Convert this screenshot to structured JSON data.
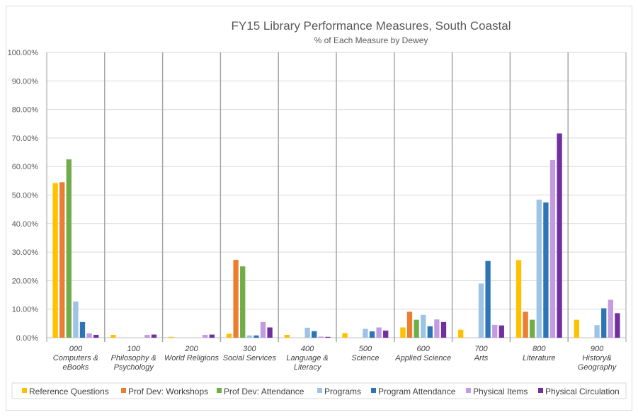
{
  "chart_data": {
    "type": "bar",
    "title": "FY15 Library Performance Measures, South Coastal",
    "subtitle": "% of Each Measure by Dewey",
    "xlabel": "",
    "ylabel": "",
    "ylim": [
      0,
      100
    ],
    "y_ticks": [
      "0.00%",
      "10.00%",
      "20.00%",
      "30.00%",
      "40.00%",
      "50.00%",
      "60.00%",
      "70.00%",
      "80.00%",
      "90.00%",
      "100.00%"
    ],
    "grid": true,
    "legend_position": "bottom",
    "categories": [
      [
        "000",
        "Computers &",
        "eBooks"
      ],
      [
        "100",
        "Philosophy &",
        "Psychology"
      ],
      [
        "200",
        "World Religions"
      ],
      [
        "300",
        "Social Services"
      ],
      [
        "400",
        "Language &",
        "Literacy"
      ],
      [
        "500",
        "Science"
      ],
      [
        "600",
        "Applied Science"
      ],
      [
        "700",
        "Arts"
      ],
      [
        "800",
        "Literature"
      ],
      [
        "900",
        "History&",
        "Geography"
      ]
    ],
    "series": [
      {
        "name": "Reference Questions",
        "color": "#ffc000",
        "values": [
          54.2,
          1.0,
          0.3,
          1.4,
          1.0,
          1.6,
          3.6,
          2.8,
          27.2,
          6.3
        ]
      },
      {
        "name": "Prof Dev: Workshops",
        "color": "#ed7d31",
        "values": [
          54.5,
          0,
          0,
          27.3,
          0,
          0,
          9.1,
          0,
          9.1,
          0
        ]
      },
      {
        "name": "Prof Dev: Attendance",
        "color": "#70ad47",
        "values": [
          62.5,
          0,
          0,
          25.0,
          0,
          0,
          6.3,
          0,
          6.3,
          0
        ]
      },
      {
        "name": "Programs",
        "color": "#9dc3e6",
        "values": [
          12.7,
          0,
          0,
          0.8,
          3.5,
          3.1,
          8.0,
          19.0,
          48.4,
          4.4
        ]
      },
      {
        "name": "Program Attendance",
        "color": "#2e75b6",
        "values": [
          5.5,
          0,
          0,
          0.8,
          2.3,
          2.2,
          4.0,
          26.9,
          47.4,
          10.3
        ]
      },
      {
        "name": "Physical Items",
        "color": "#c39be0",
        "values": [
          1.5,
          1.0,
          1.0,
          5.5,
          0.4,
          3.6,
          6.4,
          4.5,
          62.3,
          13.3
        ]
      },
      {
        "name": "Physical Circulation",
        "color": "#7030a0",
        "values": [
          1.0,
          1.1,
          1.1,
          3.6,
          0.3,
          2.5,
          5.5,
          4.3,
          71.6,
          8.6
        ]
      }
    ]
  }
}
